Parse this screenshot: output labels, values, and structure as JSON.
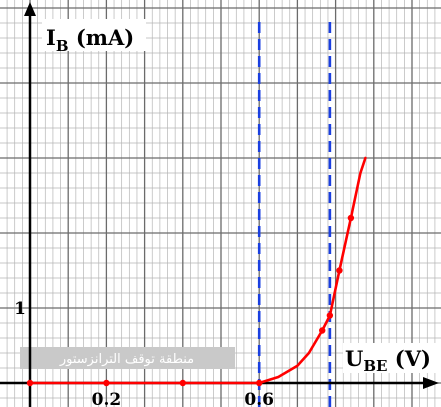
{
  "chart_data": {
    "type": "line",
    "title": "",
    "ylabel_main": "I",
    "ylabel_sub": "B",
    "ylabel_unit": " (mA)",
    "xlabel_main": "U",
    "xlabel_sub": "BE",
    "xlabel_unit": " (V)",
    "xlim": [
      0,
      1.0
    ],
    "ylim": [
      0,
      3.0
    ],
    "x_ticks": [
      {
        "value": 0.2,
        "label": "0.2"
      },
      {
        "value": 0.6,
        "label": "0.6"
      }
    ],
    "y_ticks": [
      {
        "value": 1,
        "label": "1"
      }
    ],
    "series": [
      {
        "points": [
          {
            "x": 0.0,
            "y": 0.0
          },
          {
            "x": 0.1,
            "y": 0.0
          },
          {
            "x": 0.2,
            "y": 0.0
          },
          {
            "x": 0.3,
            "y": 0.0
          },
          {
            "x": 0.4,
            "y": 0.0
          },
          {
            "x": 0.5,
            "y": 0.0
          },
          {
            "x": 0.6,
            "y": 0.0
          },
          {
            "x": 0.65,
            "y": 0.08
          },
          {
            "x": 0.7,
            "y": 0.23
          },
          {
            "x": 0.73,
            "y": 0.4
          },
          {
            "x": 0.765,
            "y": 0.7
          },
          {
            "x": 0.785,
            "y": 0.9
          },
          {
            "x": 0.81,
            "y": 1.5
          },
          {
            "x": 0.84,
            "y": 2.2
          },
          {
            "x": 0.865,
            "y": 2.8
          },
          {
            "x": 0.878,
            "y": 3.0
          }
        ],
        "color": "#ff0000"
      }
    ],
    "markers": [
      {
        "x": 0.0,
        "y": 0.0
      },
      {
        "x": 0.2,
        "y": 0.0
      },
      {
        "x": 0.4,
        "y": 0.0
      },
      {
        "x": 0.6,
        "y": 0.0
      },
      {
        "x": 0.765,
        "y": 0.7
      },
      {
        "x": 0.785,
        "y": 0.9
      },
      {
        "x": 0.81,
        "y": 1.5
      },
      {
        "x": 0.84,
        "y": 2.2
      }
    ],
    "vlines": [
      {
        "x": 0.6,
        "color": "#1a3fe0"
      },
      {
        "x": 0.785,
        "color": "#1a3fe0"
      }
    ],
    "annotation": "منطقة توقف الترانزستور",
    "grid": true,
    "colors": {
      "curve": "#ff0000",
      "vline": "#1a3fe0",
      "major_grid": "#6b6b6b",
      "minor_grid": "#b5b5b5",
      "axis": "#000000",
      "annotation_bg": "#c9c9c9",
      "annotation_text": "#ffffff"
    }
  }
}
